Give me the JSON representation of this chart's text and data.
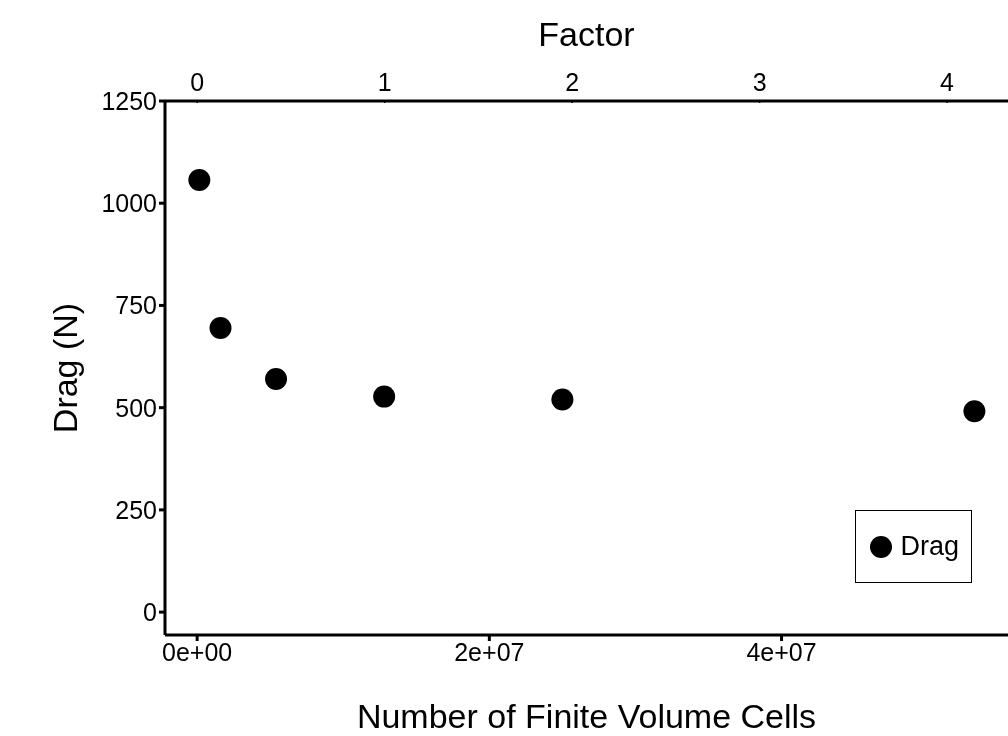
{
  "chart_data": {
    "type": "scatter",
    "xlabel": "Number of Finite Volume Cells",
    "ylabel": "Drag (N)",
    "x2label": "Factor",
    "x": [
      150000,
      1600000,
      5400000,
      12800000,
      25000000,
      53200000
    ],
    "series": [
      {
        "name": "Drag",
        "color": "#000000",
        "values": [
          1057,
          695,
          570,
          527,
          520,
          491
        ]
      }
    ],
    "xlim": [
      -2200000,
      55500000
    ],
    "xticks": [
      {
        "value": 0,
        "label": "0e+00"
      },
      {
        "value": 20000000,
        "label": "2e+07"
      },
      {
        "value": 40000000,
        "label": "4e+07"
      }
    ],
    "x2lim": [
      -0.172,
      4.325
    ],
    "x2ticks": [
      0,
      1,
      2,
      3,
      4
    ],
    "ylim": [
      -56,
      1250
    ],
    "yticks": [
      0,
      250,
      500,
      750,
      1000,
      1250
    ],
    "grid": false,
    "legend": "bottom right",
    "marker": "circle"
  }
}
